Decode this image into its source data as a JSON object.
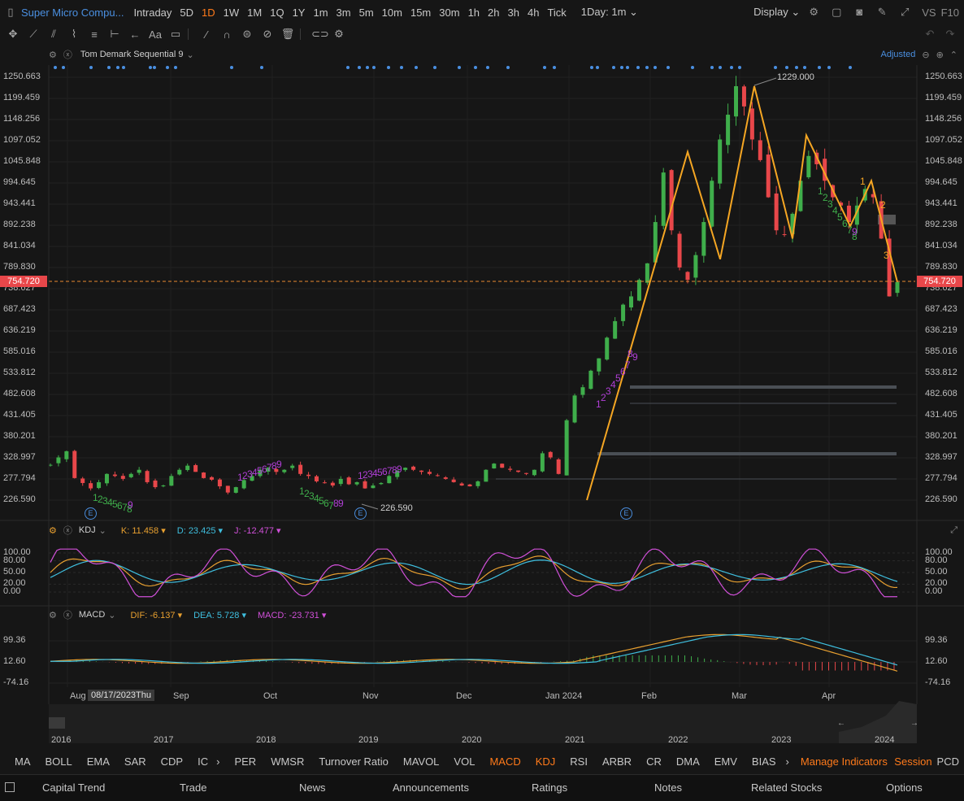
{
  "header": {
    "title": "Super Micro Compu...",
    "timeframes": [
      "Intraday",
      "5D",
      "1D",
      "1W",
      "1M",
      "1Q",
      "1Y",
      "1m",
      "3m",
      "5m",
      "10m",
      "15m",
      "30m",
      "1h",
      "2h",
      "3h",
      "4h",
      "Tick"
    ],
    "active_timeframe": "1D",
    "interval_select": "1Day: 1m",
    "display_label": "Display",
    "vs_label": "VS",
    "f10_label": "F10"
  },
  "main_indicator": {
    "name": "Tom Demark Sequential 9",
    "adjusted_label": "Adjusted",
    "current_price": "754.720",
    "high_annotation": "1229.000",
    "low_annotation": "226.590",
    "left_axis_ticks": [
      "1250.663",
      "1199.459",
      "1148.256",
      "1097.052",
      "1045.848",
      "994.645",
      "943.441",
      "892.238",
      "841.034",
      "789.830",
      "738.627",
      "687.423",
      "636.219",
      "585.016",
      "533.812",
      "482.608",
      "431.405",
      "380.201",
      "328.997",
      "277.794",
      "226.590"
    ],
    "right_axis_ticks": [
      "1250.663",
      "1199.459",
      "1148.256",
      "1097.052",
      "1045.848",
      "994.645",
      "943.441",
      "892.238",
      "841.034",
      "789.830",
      "738.627",
      "687.423",
      "636.219",
      "585.016",
      "533.812",
      "482.608",
      "431.405",
      "380.201",
      "328.997",
      "277.794",
      "226.590"
    ],
    "earnings_marker": "E"
  },
  "kdj": {
    "name": "KDJ",
    "k_label": "K:",
    "k_value": "11.458",
    "d_label": "D:",
    "d_value": "23.425",
    "j_label": "J:",
    "j_value": "-12.477",
    "ticks": [
      "100.00",
      "80.00",
      "50.00",
      "20.00",
      "0.00"
    ]
  },
  "macd": {
    "name": "MACD",
    "dif_label": "DIF:",
    "dif_value": "-6.137",
    "dea_label": "DEA:",
    "dea_value": "5.728",
    "macd_label": "MACD:",
    "macd_value": "-23.731",
    "ticks": [
      "99.36",
      "12.60",
      "-74.16"
    ]
  },
  "x_axis": {
    "months": [
      "Aug",
      "Sep",
      "Oct",
      "Nov",
      "Dec",
      "Jan 2024",
      "Feb",
      "Mar",
      "Apr"
    ],
    "crosshair_date": "08/17/2023Thu"
  },
  "overview": {
    "years": [
      "2016",
      "2017",
      "2018",
      "2019",
      "2020",
      "2021",
      "2022",
      "2023",
      "2024"
    ]
  },
  "indicator_tabs": [
    "MA",
    "BOLL",
    "EMA",
    "SAR",
    "CDP",
    "IC",
    "PER",
    "WMSR",
    "Turnover Ratio",
    "MAVOL",
    "VOL",
    "MACD",
    "KDJ",
    "RSI",
    "ARBR",
    "CR",
    "DMA",
    "EMV",
    "BIAS"
  ],
  "active_indicator_tabs": [
    "MACD",
    "KDJ"
  ],
  "manage_indicators_label": "Manage Indicators",
  "session_label": "Session",
  "pcd_label": "PCD",
  "bottom_nav": [
    "Capital Trend",
    "Trade",
    "News",
    "Announcements",
    "Ratings",
    "Notes",
    "Related Stocks",
    "Options"
  ],
  "colors": {
    "up": "#3fae4b",
    "down": "#e8474a",
    "accent": "#ff7a1a",
    "zigzag": "#f5a623",
    "td_sell": "#b03fd6",
    "td_buy": "#3fae4b"
  },
  "chart_data": {
    "type": "candlestick",
    "y_range": [
      226.59,
      1250.663
    ],
    "zigzag_prices": [
      226.59,
      1070,
      810,
      1229,
      860,
      1110,
      890,
      1000,
      754.72
    ],
    "close_series": [
      312,
      330,
      345,
      280,
      268,
      255,
      270,
      290,
      285,
      278,
      290,
      300,
      270,
      258,
      262,
      285,
      300,
      310,
      295,
      280,
      276,
      260,
      245,
      258,
      275,
      285,
      300,
      305,
      295,
      300,
      310,
      290,
      285,
      272,
      268,
      262,
      278,
      265,
      270,
      255,
      262,
      268,
      285,
      298,
      305,
      300,
      295,
      290,
      285,
      278,
      270,
      262,
      260,
      272,
      300,
      315,
      305,
      300,
      295,
      290,
      300,
      340,
      330,
      290,
      420,
      480,
      500,
      540,
      570,
      620,
      660,
      700,
      720,
      760,
      800,
      900,
      1020,
      880,
      790,
      760,
      820,
      900,
      1000,
      1100,
      1160,
      1229,
      1180,
      1100,
      1050,
      960,
      880,
      870,
      920,
      1000,
      1060,
      1040,
      1000,
      960,
      940,
      900,
      940,
      980,
      960,
      860,
      720,
      754.72
    ]
  }
}
